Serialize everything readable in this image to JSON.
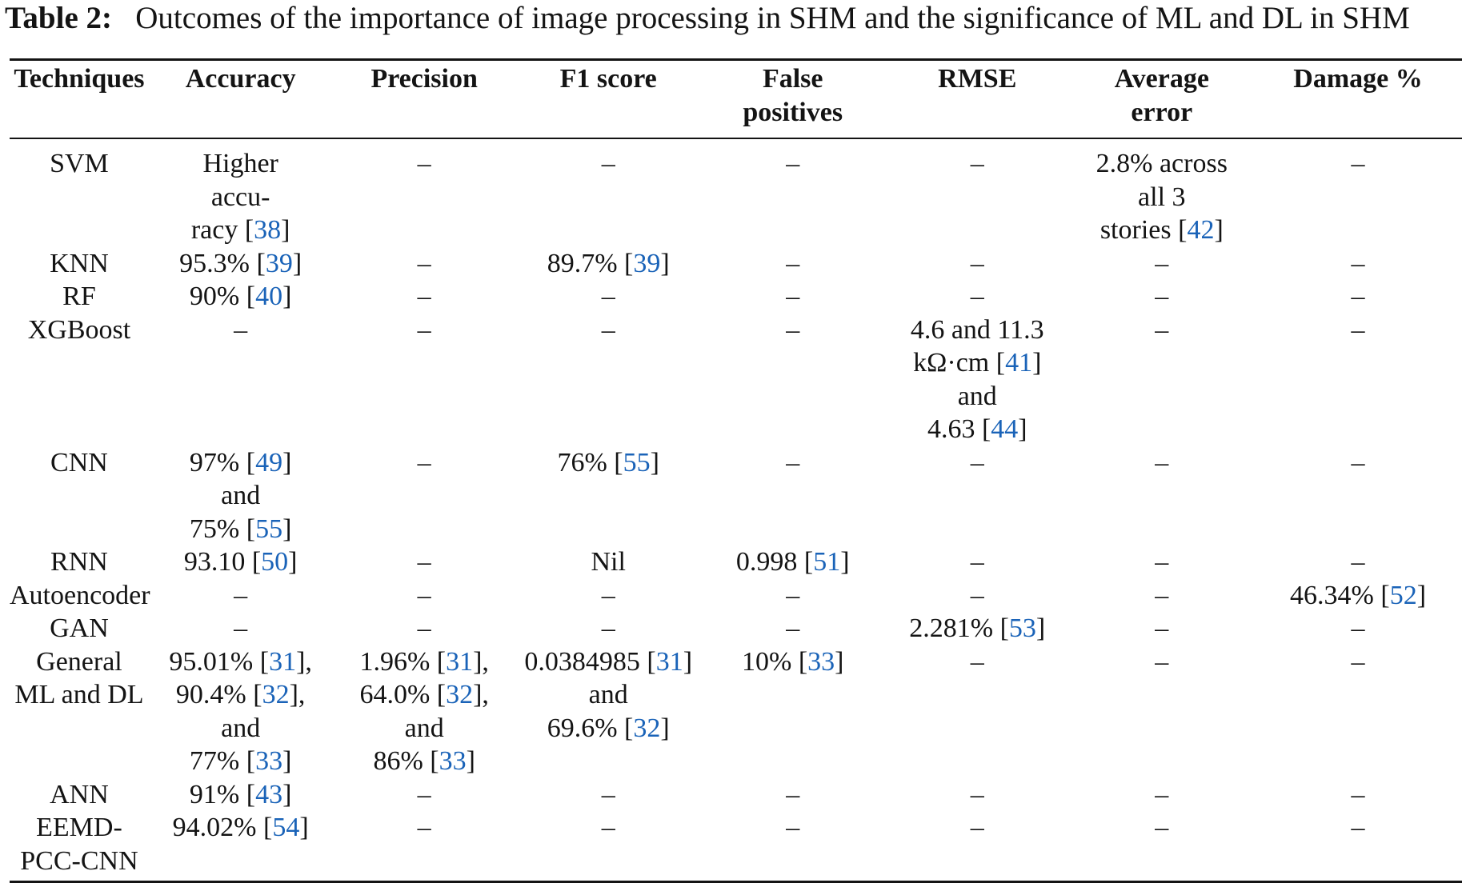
{
  "caption": {
    "label": "Table 2:",
    "text": "Outcomes of the importance of image processing in SHM and the significance of ML and DL in SHM"
  },
  "colors": {
    "ref": "#1a63b8",
    "text": "#141414"
  },
  "headers": [
    [
      "Techniques"
    ],
    [
      "Accuracy"
    ],
    [
      "Precision"
    ],
    [
      "F1 score"
    ],
    [
      "False",
      "positives"
    ],
    [
      "RMSE"
    ],
    [
      "Average",
      "error"
    ],
    [
      "Damage %"
    ]
  ],
  "rows": [
    {
      "technique": [
        "SVM"
      ],
      "cells": [
        [
          [
            "Higher"
          ],
          [
            "accu-"
          ],
          [
            "racy ",
            "38"
          ]
        ],
        [
          [
            "–"
          ]
        ],
        [
          [
            "–"
          ]
        ],
        [
          [
            "–"
          ]
        ],
        [
          [
            "–"
          ]
        ],
        [
          [
            "2.8% across"
          ],
          [
            "all 3"
          ],
          [
            "stories ",
            "42"
          ]
        ],
        [
          [
            "–"
          ]
        ]
      ]
    },
    {
      "technique": [
        "KNN"
      ],
      "cells": [
        [
          [
            "95.3% ",
            "39"
          ]
        ],
        [
          [
            "–"
          ]
        ],
        [
          [
            "89.7% ",
            "39"
          ]
        ],
        [
          [
            "–"
          ]
        ],
        [
          [
            "–"
          ]
        ],
        [
          [
            "–"
          ]
        ],
        [
          [
            "–"
          ]
        ]
      ]
    },
    {
      "technique": [
        "RF"
      ],
      "cells": [
        [
          [
            "90% ",
            "40"
          ]
        ],
        [
          [
            "–"
          ]
        ],
        [
          [
            "–"
          ]
        ],
        [
          [
            "–"
          ]
        ],
        [
          [
            "–"
          ]
        ],
        [
          [
            "–"
          ]
        ],
        [
          [
            "–"
          ]
        ]
      ]
    },
    {
      "technique": [
        "XGBoost"
      ],
      "cells": [
        [
          [
            "–"
          ]
        ],
        [
          [
            "–"
          ]
        ],
        [
          [
            "–"
          ]
        ],
        [
          [
            "–"
          ]
        ],
        [
          [
            "4.6 and 11.3"
          ],
          [
            "kΩ·cm ",
            "41"
          ],
          [
            "and"
          ],
          [
            "4.63 ",
            "44"
          ]
        ],
        [
          [
            "–"
          ]
        ],
        [
          [
            "–"
          ]
        ]
      ]
    },
    {
      "technique": [
        "CNN"
      ],
      "cells": [
        [
          [
            "97% ",
            "49"
          ],
          [
            "and"
          ],
          [
            "75% ",
            "55"
          ]
        ],
        [
          [
            "–"
          ]
        ],
        [
          [
            "76% ",
            "55"
          ]
        ],
        [
          [
            "–"
          ]
        ],
        [
          [
            "–"
          ]
        ],
        [
          [
            "–"
          ]
        ],
        [
          [
            "–"
          ]
        ]
      ]
    },
    {
      "technique": [
        "RNN"
      ],
      "cells": [
        [
          [
            "93.10 ",
            "50"
          ]
        ],
        [
          [
            "–"
          ]
        ],
        [
          [
            "Nil"
          ]
        ],
        [
          [
            "0.998 ",
            "51"
          ]
        ],
        [
          [
            "–"
          ]
        ],
        [
          [
            "–"
          ]
        ],
        [
          [
            "–"
          ]
        ]
      ]
    },
    {
      "technique": [
        "Autoencoder"
      ],
      "cells": [
        [
          [
            "–"
          ]
        ],
        [
          [
            "–"
          ]
        ],
        [
          [
            "–"
          ]
        ],
        [
          [
            "–"
          ]
        ],
        [
          [
            "–"
          ]
        ],
        [
          [
            "–"
          ]
        ],
        [
          [
            "46.34% ",
            "52"
          ]
        ]
      ]
    },
    {
      "technique": [
        "GAN"
      ],
      "cells": [
        [
          [
            "–"
          ]
        ],
        [
          [
            "–"
          ]
        ],
        [
          [
            "–"
          ]
        ],
        [
          [
            "–"
          ]
        ],
        [
          [
            "2.281% ",
            "53"
          ]
        ],
        [
          [
            "–"
          ]
        ],
        [
          [
            "–"
          ]
        ]
      ]
    },
    {
      "technique": [
        "General",
        "ML and DL"
      ],
      "cells": [
        [
          [
            "95.01% ",
            "31",
            ","
          ],
          [
            "90.4% ",
            "32",
            ","
          ],
          [
            "and"
          ],
          [
            "77% ",
            "33"
          ]
        ],
        [
          [
            "1.96% ",
            "31",
            ","
          ],
          [
            "64.0% ",
            "32",
            ","
          ],
          [
            "and"
          ],
          [
            "86% ",
            "33"
          ]
        ],
        [
          [
            "0.0384985 ",
            "31"
          ],
          [
            "and"
          ],
          [
            "69.6% ",
            "32"
          ]
        ],
        [
          [
            "10% ",
            "33"
          ]
        ],
        [
          [
            "–"
          ]
        ],
        [
          [
            "–"
          ]
        ],
        [
          [
            "–"
          ]
        ]
      ]
    },
    {
      "technique": [
        "ANN"
      ],
      "cells": [
        [
          [
            "91% ",
            "43"
          ]
        ],
        [
          [
            "–"
          ]
        ],
        [
          [
            "–"
          ]
        ],
        [
          [
            "–"
          ]
        ],
        [
          [
            "–"
          ]
        ],
        [
          [
            "–"
          ]
        ],
        [
          [
            "–"
          ]
        ]
      ]
    },
    {
      "technique": [
        "EEMD-",
        "PCC-CNN"
      ],
      "cells": [
        [
          [
            "94.02% ",
            "54"
          ]
        ],
        [
          [
            "–"
          ]
        ],
        [
          [
            "–"
          ]
        ],
        [
          [
            "–"
          ]
        ],
        [
          [
            "–"
          ]
        ],
        [
          [
            "–"
          ]
        ],
        [
          [
            "–"
          ]
        ]
      ]
    }
  ]
}
